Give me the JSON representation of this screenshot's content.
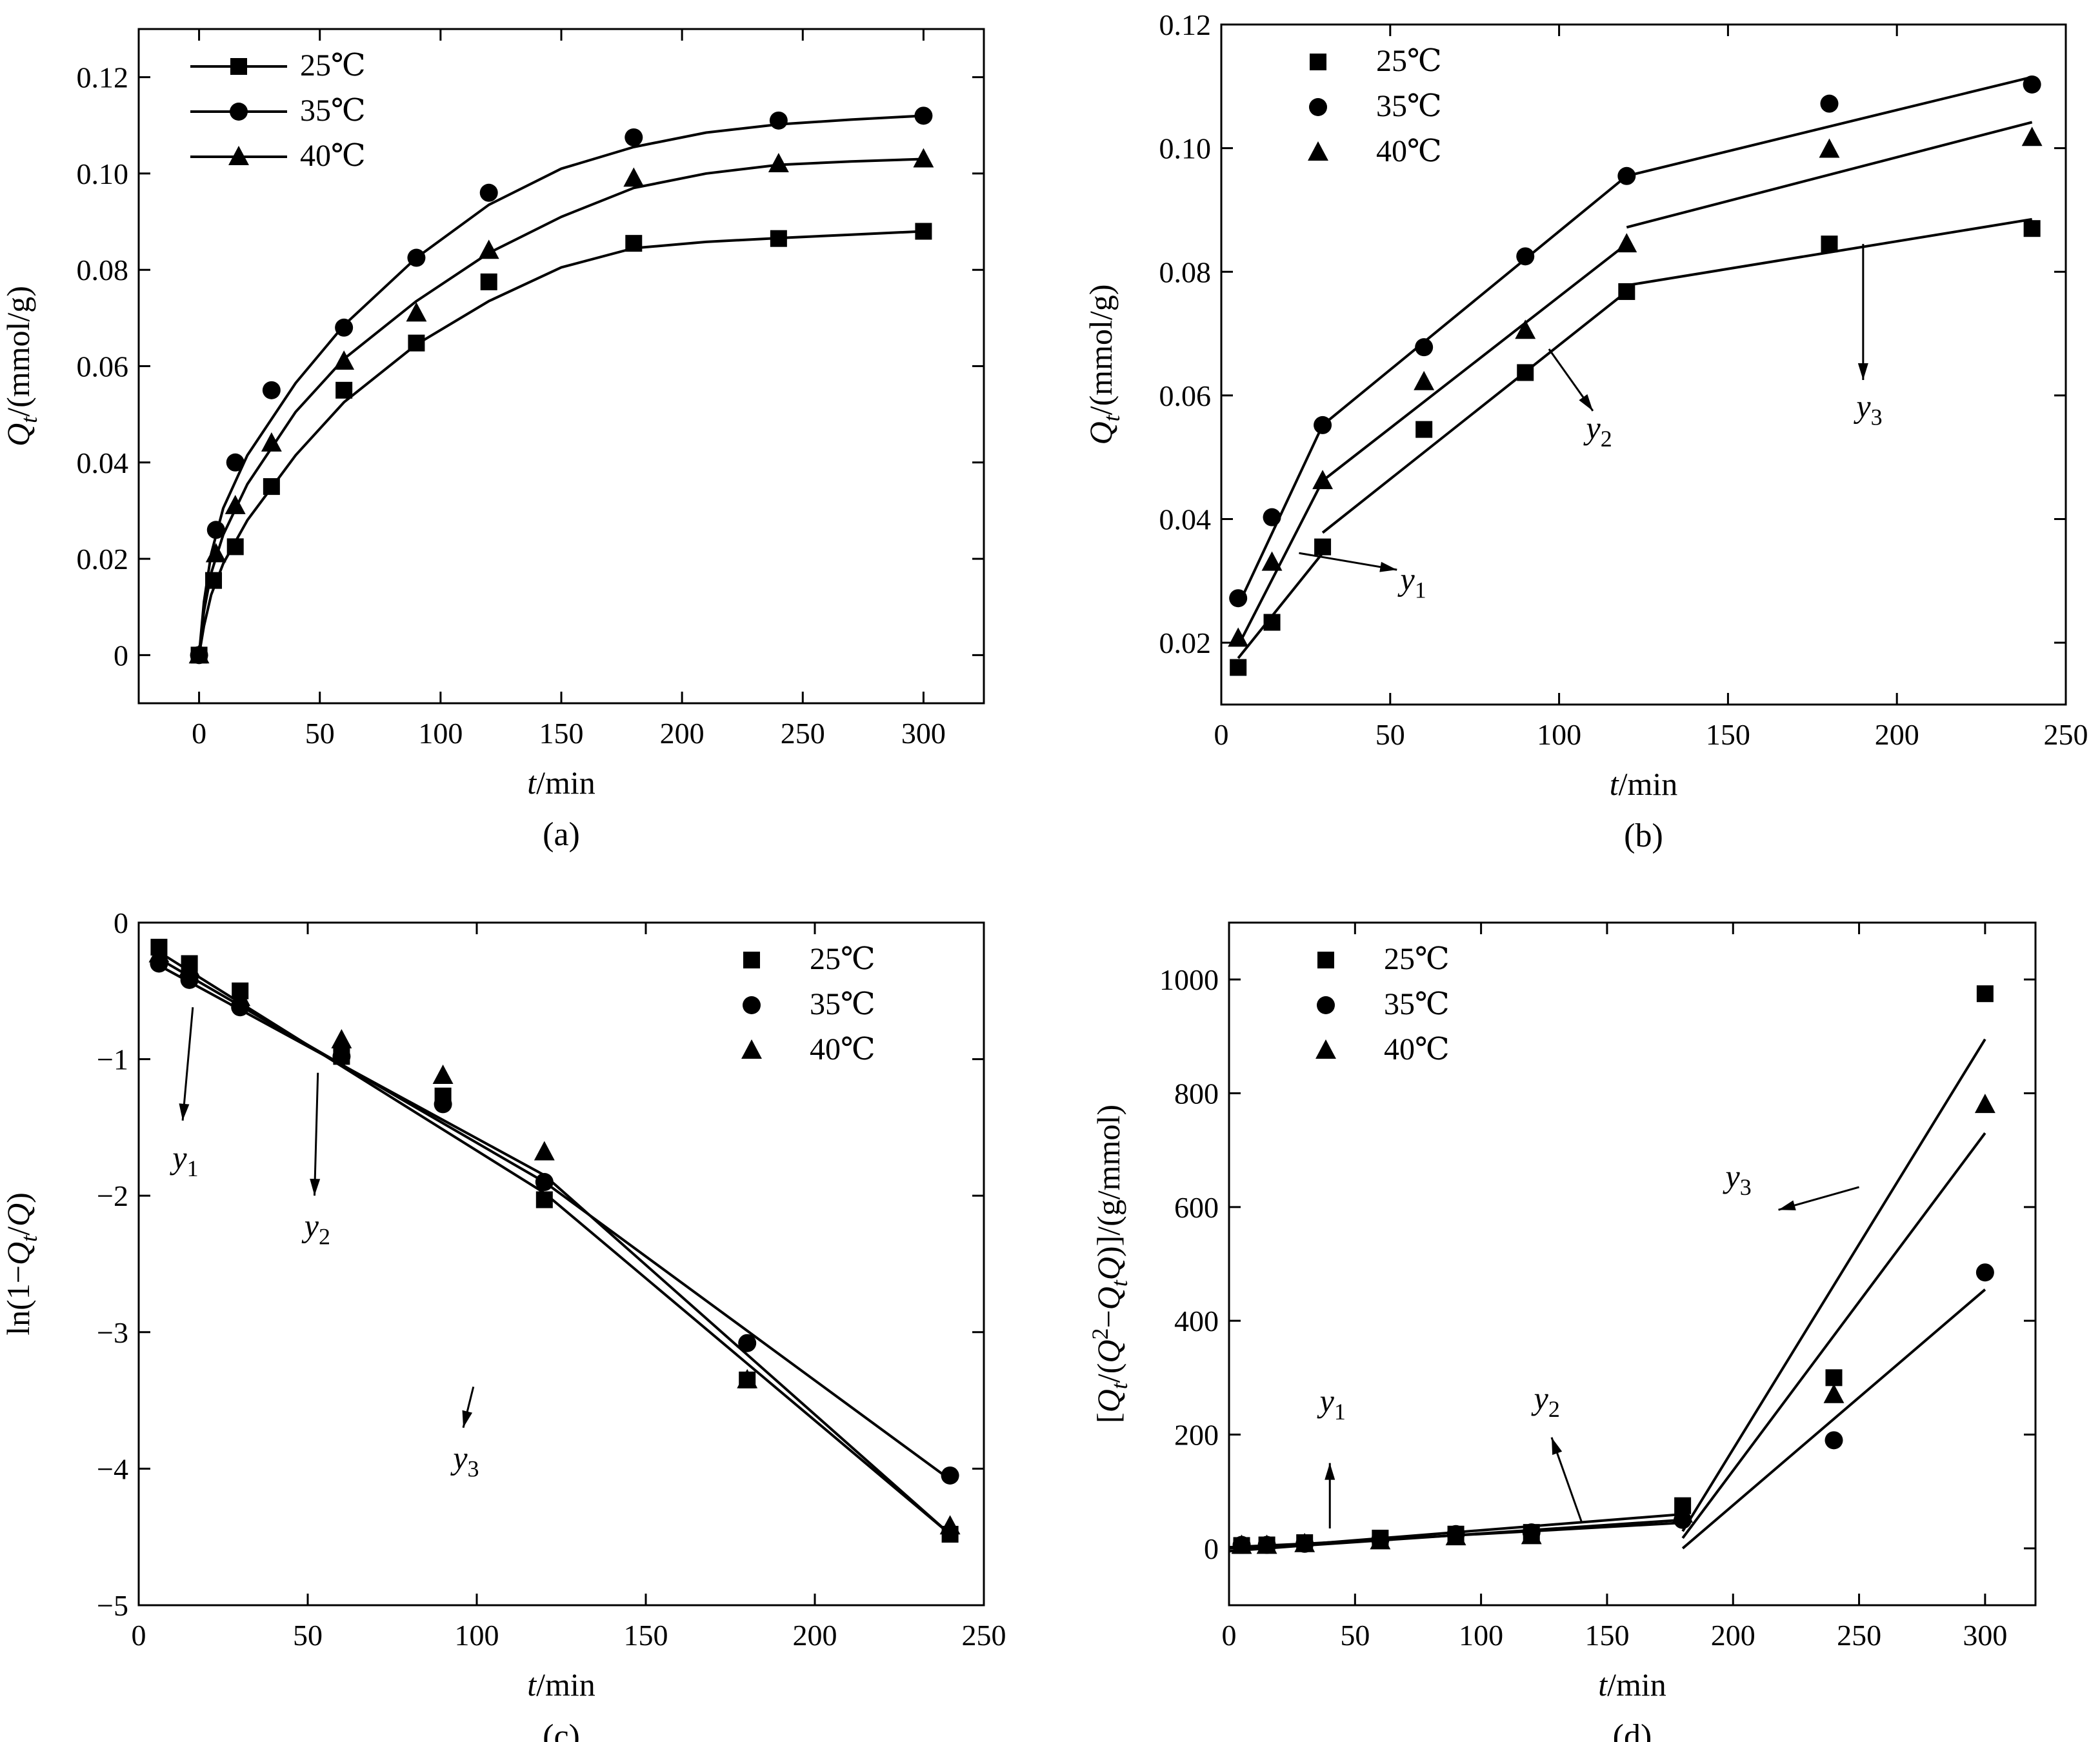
{
  "figure": {
    "panels": [
      "(a)",
      "(b)",
      "(c)",
      "(d)"
    ]
  },
  "chart_data": [
    {
      "panel": "(a)",
      "type": "line",
      "xlabel": "t/min",
      "ylabel": "Qt/(mmol/g)",
      "xlim": [
        -25,
        325
      ],
      "ylim": [
        -0.01,
        0.13
      ],
      "xticks": [
        0,
        50,
        100,
        150,
        200,
        250,
        300
      ],
      "yticks": [
        0,
        0.02,
        0.04,
        0.06,
        0.08,
        0.1,
        0.12
      ],
      "ytick_labels": [
        "0",
        "0.02",
        "0.04",
        "0.06",
        "0.08",
        "0.10",
        "0.12"
      ],
      "legend_position": "top-left",
      "legend_style": "line-marker",
      "series": [
        {
          "name": "25℃",
          "marker": "square",
          "x": [
            0,
            6,
            15,
            30,
            60,
            90,
            120,
            180,
            240,
            300
          ],
          "y": [
            0,
            0.0155,
            0.0225,
            0.035,
            0.055,
            0.0648,
            0.0775,
            0.0855,
            0.0865,
            0.088
          ],
          "fit_x": [
            0,
            2,
            5,
            10,
            20,
            40,
            60,
            90,
            120,
            150,
            180,
            210,
            240,
            270,
            300
          ],
          "fit_y": [
            0,
            0.006,
            0.0125,
            0.019,
            0.028,
            0.0415,
            0.0525,
            0.0645,
            0.0735,
            0.0805,
            0.0845,
            0.0858,
            0.0866,
            0.0873,
            0.088
          ]
        },
        {
          "name": "35℃",
          "marker": "circle",
          "x": [
            0,
            7,
            15,
            30,
            60,
            90,
            120,
            180,
            240,
            300
          ],
          "y": [
            0,
            0.026,
            0.04,
            0.055,
            0.068,
            0.0825,
            0.096,
            0.1075,
            0.111,
            0.112
          ],
          "fit_x": [
            0,
            2,
            5,
            10,
            20,
            40,
            60,
            90,
            120,
            150,
            180,
            210,
            240,
            270,
            300
          ],
          "fit_y": [
            0,
            0.011,
            0.021,
            0.0305,
            0.0415,
            0.0565,
            0.0685,
            0.0825,
            0.0935,
            0.101,
            0.1055,
            0.1085,
            0.1102,
            0.1112,
            0.112
          ]
        },
        {
          "name": "40℃",
          "marker": "triangle",
          "x": [
            0,
            7,
            15,
            30,
            60,
            90,
            120,
            180,
            240,
            300
          ],
          "y": [
            0,
            0.021,
            0.031,
            0.044,
            0.061,
            0.071,
            0.084,
            0.099,
            0.102,
            0.103
          ],
          "fit_x": [
            0,
            2,
            5,
            10,
            20,
            40,
            60,
            90,
            120,
            150,
            180,
            210,
            240,
            270,
            300
          ],
          "fit_y": [
            0,
            0.009,
            0.017,
            0.025,
            0.0355,
            0.0505,
            0.0615,
            0.0735,
            0.0835,
            0.091,
            0.097,
            0.1,
            0.1018,
            0.1025,
            0.103
          ]
        }
      ]
    },
    {
      "panel": "(b)",
      "type": "line",
      "xlabel": "t/min",
      "ylabel": "Qt/(mmol/g)",
      "xlim": [
        0,
        250
      ],
      "ylim": [
        0.01,
        0.12
      ],
      "xticks": [
        0,
        50,
        100,
        150,
        200,
        250
      ],
      "yticks": [
        0.02,
        0.04,
        0.06,
        0.08,
        0.1,
        0.12
      ],
      "ytick_labels": [
        "0.02",
        "0.04",
        "0.06",
        "0.08",
        "0.10",
        "0.12"
      ],
      "legend_position": "top-left",
      "legend_style": "marker-only",
      "series": [
        {
          "name": "25℃",
          "marker": "square",
          "x": [
            5,
            15,
            30,
            60,
            90,
            120,
            180,
            240
          ],
          "y": [
            0.016,
            0.0233,
            0.0355,
            0.0545,
            0.0637,
            0.0768,
            0.0845,
            0.087
          ],
          "fit_x": [
            5,
            30,
            30,
            120,
            120,
            240
          ],
          "fit_y": [
            0.0175,
            0.0345,
            0.0378,
            0.0768,
            0.0778,
            0.0885
          ]
        },
        {
          "name": "35℃",
          "marker": "circle",
          "x": [
            5,
            15,
            30,
            60,
            90,
            120,
            180,
            240
          ],
          "y": [
            0.0272,
            0.0403,
            0.0552,
            0.0678,
            0.0825,
            0.0955,
            0.1072,
            0.1103
          ],
          "fit_x": [
            5,
            30,
            30,
            120,
            120,
            240
          ],
          "fit_y": [
            0.026,
            0.0552,
            0.0552,
            0.0955,
            0.0955,
            0.1115
          ]
        },
        {
          "name": "40℃",
          "marker": "triangle",
          "x": [
            5,
            15,
            30,
            60,
            90,
            120,
            180,
            240
          ],
          "y": [
            0.0207,
            0.033,
            0.0462,
            0.0622,
            0.0705,
            0.0845,
            0.0998,
            0.1017
          ],
          "fit_x": [
            5,
            30,
            30,
            120,
            120,
            240
          ],
          "fit_y": [
            0.0195,
            0.0462,
            0.0462,
            0.0845,
            0.0872,
            0.1042
          ]
        }
      ],
      "annotations": [
        {
          "text": "y",
          "sub": "1"
        },
        {
          "text": "y",
          "sub": "2"
        },
        {
          "text": "y",
          "sub": "3"
        }
      ]
    },
    {
      "panel": "(c)",
      "type": "line",
      "xlabel": "t/min",
      "ylabel": "ln(1−Qt/Q)",
      "xlim": [
        0,
        250
      ],
      "ylim": [
        -5,
        0
      ],
      "xticks": [
        0,
        50,
        100,
        150,
        200,
        250
      ],
      "yticks": [
        0,
        -1,
        -2,
        -3,
        -4,
        -5
      ],
      "ytick_labels": [
        "0",
        "−1",
        "−2",
        "−3",
        "−4",
        "−5"
      ],
      "legend_position": "top-right",
      "legend_style": "marker-only",
      "series": [
        {
          "name": "25℃",
          "marker": "square",
          "x": [
            6,
            15,
            30,
            60,
            90,
            120,
            180,
            240
          ],
          "y": [
            -0.18,
            -0.3,
            -0.5,
            -0.98,
            -1.27,
            -2.03,
            -3.35,
            -4.48
          ],
          "fit_x": [
            5,
            120,
            120,
            240
          ],
          "fit_y": [
            -0.2,
            -1.98,
            -1.98,
            -4.48
          ]
        },
        {
          "name": "35℃",
          "marker": "circle",
          "x": [
            6,
            15,
            30,
            60,
            90,
            120,
            180,
            240
          ],
          "y": [
            -0.3,
            -0.42,
            -0.62,
            -0.98,
            -1.33,
            -1.9,
            -3.08,
            -4.05
          ],
          "fit_x": [
            5,
            120,
            120,
            240
          ],
          "fit_y": [
            -0.25,
            -1.9,
            -1.9,
            -4.08
          ]
        },
        {
          "name": "40℃",
          "marker": "triangle",
          "x": [
            6,
            15,
            30,
            60,
            90,
            120,
            180,
            240
          ],
          "y": [
            -0.23,
            -0.33,
            -0.55,
            -0.86,
            -1.12,
            -1.68,
            -3.35,
            -4.42
          ],
          "fit_x": [
            5,
            120,
            120,
            240
          ],
          "fit_y": [
            -0.3,
            -1.85,
            -1.85,
            -4.48
          ]
        }
      ],
      "annotations": [
        {
          "text": "y",
          "sub": "1"
        },
        {
          "text": "y",
          "sub": "2"
        },
        {
          "text": "y",
          "sub": "3"
        }
      ]
    },
    {
      "panel": "(d)",
      "type": "line",
      "xlabel": "t/min",
      "ylabel": "[Qt/(Q²−QtQ)]/(g/mmol)",
      "xlim": [
        0,
        320
      ],
      "ylim": [
        -100,
        1100
      ],
      "xticks": [
        0,
        50,
        100,
        150,
        200,
        250,
        300
      ],
      "yticks": [
        0,
        200,
        400,
        600,
        800,
        1000
      ],
      "ytick_labels": [
        "0",
        "200",
        "400",
        "600",
        "800",
        "1000"
      ],
      "legend_position": "top-left",
      "legend_style": "marker-only",
      "series": [
        {
          "name": "25℃",
          "marker": "square",
          "x": [
            5,
            15,
            30,
            60,
            90,
            120,
            180,
            240,
            300
          ],
          "y": [
            5,
            6,
            10,
            18,
            25,
            28,
            75,
            300,
            975
          ],
          "fit_x": [
            0,
            30,
            30,
            180,
            180,
            300
          ],
          "fit_y": [
            0,
            7,
            7,
            60,
            30,
            895
          ]
        },
        {
          "name": "35℃",
          "marker": "circle",
          "x": [
            5,
            15,
            30,
            60,
            90,
            120,
            180,
            240,
            300
          ],
          "y": [
            6,
            6,
            8,
            15,
            25,
            28,
            50,
            190,
            485
          ],
          "fit_x": [
            0,
            30,
            30,
            180,
            180,
            300
          ],
          "fit_y": [
            2,
            8,
            8,
            45,
            0,
            455
          ]
        },
        {
          "name": "40℃",
          "marker": "triangle",
          "x": [
            5,
            15,
            30,
            60,
            90,
            120,
            180,
            240,
            300
          ],
          "y": [
            5,
            5,
            8,
            13,
            20,
            22,
            60,
            270,
            780
          ],
          "fit_x": [
            0,
            30,
            30,
            180,
            180,
            300
          ],
          "fit_y": [
            -5,
            5,
            5,
            50,
            18,
            730
          ]
        }
      ],
      "annotations": [
        {
          "text": "y",
          "sub": "1"
        },
        {
          "text": "y",
          "sub": "2"
        },
        {
          "text": "y",
          "sub": "3"
        }
      ]
    }
  ]
}
